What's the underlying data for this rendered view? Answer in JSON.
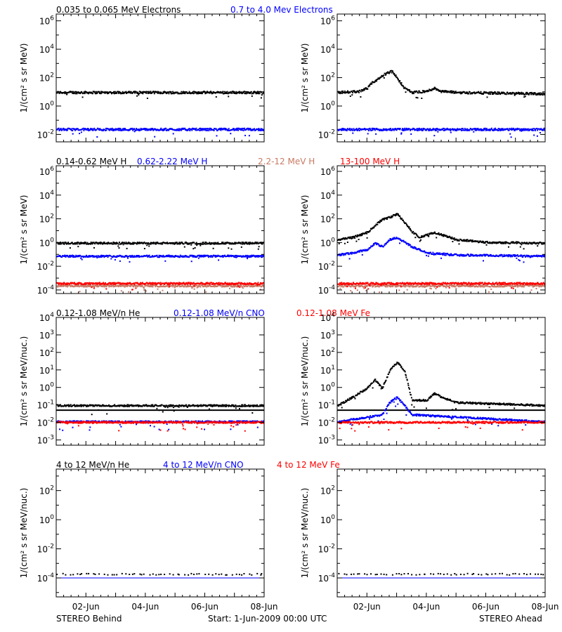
{
  "colors": {
    "black": "#000000",
    "blue": "#0000ff",
    "salmon": "#c87a64",
    "red": "#ff0000"
  },
  "rows": [
    {
      "titles": [
        {
          "text": "0.035 to 0.065 MeV Electrons",
          "color": "black"
        },
        {
          "text": "0.7 to 4.0 Mev Electrons",
          "color": "blue"
        }
      ],
      "ylabel": "1/(cm² s sr MeV)"
    },
    {
      "titles": [
        {
          "text": "0.14-0.62 MeV H",
          "color": "black"
        },
        {
          "text": "0.62-2.22 MeV H",
          "color": "blue"
        },
        {
          "text": "2.2-12 MeV H",
          "color": "salmon"
        },
        {
          "text": "13-100 MeV H",
          "color": "red"
        }
      ],
      "ylabel": "1/(cm² s sr MeV)"
    },
    {
      "titles": [
        {
          "text": "0.12-1.08 MeV/n He",
          "color": "black"
        },
        {
          "text": "0.12-1.08 MeV/n CNO",
          "color": "blue"
        },
        {
          "text": "0.12-1.08 MeV Fe",
          "color": "red"
        }
      ],
      "ylabel": "1/(cm² s sr MeV/nuc.)"
    },
    {
      "titles": [
        {
          "text": "4 to 12 MeV/n He",
          "color": "black"
        },
        {
          "text": "4 to 12 MeV/n CNO",
          "color": "blue"
        },
        {
          "text": "4 to 12 MeV Fe",
          "color": "red"
        }
      ],
      "ylabel": "1/(cm² s sr MeV/nuc.)"
    }
  ],
  "footer": {
    "left": "STEREO Behind",
    "center": "Start:  1-Jun-2009 00:00 UTC",
    "right": "STEREO Ahead"
  },
  "chart_data": [
    {
      "type": "scatter",
      "panel": "Behind electrons",
      "yscale": "log",
      "xlim": [
        "2009-06-01",
        "2009-06-08"
      ],
      "ylim": [
        0.003,
        3000000
      ],
      "yticks": [
        0.01,
        1,
        100,
        10000,
        1000000
      ],
      "series": [
        {
          "name": "0.035 to 0.065 MeV Electrons",
          "color": "black",
          "style": "points",
          "x": [
            "2009-06-01",
            "2009-06-08"
          ],
          "y": [
            10,
            10
          ]
        },
        {
          "name": "0.7 to 4.0 Mev Electrons",
          "color": "blue",
          "style": "points",
          "x": [
            "2009-06-01",
            "2009-06-08"
          ],
          "y": [
            0.025,
            0.025
          ]
        }
      ]
    },
    {
      "type": "scatter",
      "panel": "Ahead electrons",
      "yscale": "log",
      "xlim": [
        "2009-06-01",
        "2009-06-08"
      ],
      "ylim": [
        0.003,
        3000000
      ],
      "yticks": [
        0.01,
        1,
        100,
        10000,
        1000000
      ],
      "series": [
        {
          "name": "0.035 to 0.065 MeV Electrons",
          "color": "black",
          "style": "points",
          "x": [
            "2009-06-01",
            "2009-06-01 18:00",
            "2009-06-02 00:00",
            "2009-06-02 04:00",
            "2009-06-02 08:00",
            "2009-06-02 12:00",
            "2009-06-02 16:00",
            "2009-06-02 20:00",
            "2009-06-03 00:00",
            "2009-06-03 06:00",
            "2009-06-03 12:00",
            "2009-06-04 00:00",
            "2009-06-04 06:00",
            "2009-06-04 12:00",
            "2009-06-05 00:00",
            "2009-06-08"
          ],
          "y": [
            10,
            12,
            20,
            50,
            80,
            150,
            250,
            300,
            100,
            20,
            10,
            12,
            20,
            12,
            10,
            8
          ]
        },
        {
          "name": "0.7 to 4.0 Mev Electrons",
          "color": "blue",
          "style": "points",
          "x": [
            "2009-06-01",
            "2009-06-08"
          ],
          "y": [
            0.025,
            0.025
          ]
        }
      ]
    },
    {
      "type": "scatter",
      "panel": "Behind H",
      "yscale": "log",
      "xlim": [
        "2009-06-01",
        "2009-06-08"
      ],
      "ylim": [
        5e-05,
        3000000
      ],
      "yticks": [
        0.0001,
        0.01,
        1,
        100,
        10000,
        1000000
      ],
      "series": [
        {
          "name": "0.14-0.62 MeV H",
          "color": "black",
          "style": "points",
          "x": [
            "2009-06-01",
            "2009-06-08"
          ],
          "y": [
            1,
            1
          ]
        },
        {
          "name": "0.62-2.22 MeV H",
          "color": "blue",
          "style": "points",
          "x": [
            "2009-06-01",
            "2009-06-08"
          ],
          "y": [
            0.08,
            0.08
          ]
        },
        {
          "name": "2.2-12 MeV H",
          "color": "salmon",
          "style": "points",
          "x": [
            "2009-06-01",
            "2009-06-08"
          ],
          "y": [
            0.00025,
            0.00025
          ]
        },
        {
          "name": "13-100 MeV H",
          "color": "red",
          "style": "points",
          "x": [
            "2009-06-01",
            "2009-06-08"
          ],
          "y": [
            0.0004,
            0.0004
          ]
        }
      ]
    },
    {
      "type": "scatter",
      "panel": "Ahead H",
      "yscale": "log",
      "xlim": [
        "2009-06-01",
        "2009-06-08"
      ],
      "ylim": [
        5e-05,
        3000000
      ],
      "yticks": [
        0.0001,
        0.01,
        1,
        100,
        10000,
        1000000
      ],
      "series": [
        {
          "name": "0.14-0.62 MeV H",
          "color": "black",
          "style": "points",
          "x": [
            "2009-06-01",
            "2009-06-01 12:00",
            "2009-06-02 00:00",
            "2009-06-02 06:00",
            "2009-06-02 12:00",
            "2009-06-02 18:00",
            "2009-06-03 00:00",
            "2009-06-03 12:00",
            "2009-06-03 18:00",
            "2009-06-04 00:00",
            "2009-06-04 06:00",
            "2009-06-04 12:00",
            "2009-06-05 00:00",
            "2009-06-06 00:00",
            "2009-06-08"
          ],
          "y": [
            2,
            3,
            8,
            30,
            100,
            150,
            300,
            10,
            3,
            5,
            8,
            5,
            2,
            1.2,
            1
          ]
        },
        {
          "name": "0.62-2.22 MeV H",
          "color": "blue",
          "style": "points",
          "x": [
            "2009-06-01",
            "2009-06-01 12:00",
            "2009-06-02 00:00",
            "2009-06-02 06:00",
            "2009-06-02 12:00",
            "2009-06-02 18:00",
            "2009-06-03 00:00",
            "2009-06-03 12:00",
            "2009-06-04 00:00",
            "2009-06-05 00:00",
            "2009-06-08"
          ],
          "y": [
            0.1,
            0.15,
            0.3,
            1,
            0.5,
            2,
            3,
            0.5,
            0.15,
            0.1,
            0.08
          ]
        },
        {
          "name": "2.2-12 MeV H",
          "color": "salmon",
          "style": "points",
          "x": [
            "2009-06-01",
            "2009-06-08"
          ],
          "y": [
            0.00025,
            0.00025
          ]
        },
        {
          "name": "13-100 MeV H",
          "color": "red",
          "style": "points",
          "x": [
            "2009-06-01",
            "2009-06-08"
          ],
          "y": [
            0.0004,
            0.0004
          ]
        }
      ]
    },
    {
      "type": "scatter",
      "panel": "Behind low-energy ions",
      "yscale": "log",
      "xlim": [
        "2009-06-01",
        "2009-06-08"
      ],
      "ylim": [
        0.0005,
        10000
      ],
      "yticks": [
        0.001,
        0.01,
        0.1,
        1,
        10,
        100,
        1000,
        10000
      ],
      "series": [
        {
          "name": "0.12-1.08 MeV/n He",
          "color": "black",
          "style": "points",
          "x": [
            "2009-06-01",
            "2009-06-08"
          ],
          "y": [
            0.1,
            0.1
          ]
        },
        {
          "name": "0.12-1.08 MeV/n He (baseline)",
          "color": "black",
          "style": "line",
          "x": [
            "2009-06-01",
            "2009-06-08"
          ],
          "y": [
            0.05,
            0.05
          ]
        },
        {
          "name": "0.12-1.08 MeV/n CNO",
          "color": "blue",
          "style": "points",
          "x": [
            "2009-06-01",
            "2009-06-08"
          ],
          "y": [
            0.012,
            0.012
          ]
        },
        {
          "name": "0.12-1.08 MeV Fe",
          "color": "red",
          "style": "points",
          "x": [
            "2009-06-01",
            "2009-06-08"
          ],
          "y": [
            0.011,
            0.011
          ]
        }
      ]
    },
    {
      "type": "scatter",
      "panel": "Ahead low-energy ions",
      "yscale": "log",
      "xlim": [
        "2009-06-01",
        "2009-06-08"
      ],
      "ylim": [
        0.0005,
        10000
      ],
      "yticks": [
        0.001,
        0.01,
        0.1,
        1,
        10,
        100,
        1000,
        10000
      ],
      "series": [
        {
          "name": "0.12-1.08 MeV/n He",
          "color": "black",
          "style": "points",
          "x": [
            "2009-06-01",
            "2009-06-01 12:00",
            "2009-06-02 00:00",
            "2009-06-02 06:00",
            "2009-06-02 12:00",
            "2009-06-02 18:00",
            "2009-06-03 00:00",
            "2009-06-03 06:00",
            "2009-06-03 12:00",
            "2009-06-04 00:00",
            "2009-06-04 06:00",
            "2009-06-04 12:00",
            "2009-06-05 00:00",
            "2009-06-08"
          ],
          "y": [
            0.1,
            0.3,
            1,
            3,
            1,
            10,
            30,
            10,
            0.2,
            0.2,
            0.5,
            0.3,
            0.15,
            0.1
          ]
        },
        {
          "name": "0.12-1.08 MeV/n He (baseline)",
          "color": "black",
          "style": "line",
          "x": [
            "2009-06-01",
            "2009-06-08"
          ],
          "y": [
            0.05,
            0.05
          ]
        },
        {
          "name": "0.12-1.08 MeV/n CNO",
          "color": "blue",
          "style": "points",
          "x": [
            "2009-06-01",
            "2009-06-02 12:00",
            "2009-06-02 18:00",
            "2009-06-03 00:00",
            "2009-06-03 06:00",
            "2009-06-03 12:00",
            "2009-06-08"
          ],
          "y": [
            0.012,
            0.03,
            0.15,
            0.3,
            0.1,
            0.03,
            0.012
          ]
        },
        {
          "name": "0.12-1.08 MeV Fe",
          "color": "red",
          "style": "points",
          "x": [
            "2009-06-01",
            "2009-06-08"
          ],
          "y": [
            0.011,
            0.011
          ]
        }
      ]
    },
    {
      "type": "scatter",
      "panel": "Behind high-energy ions",
      "yscale": "log",
      "xlim": [
        "2009-06-01",
        "2009-06-08"
      ],
      "ylim": [
        5e-06,
        3000
      ],
      "yticks": [
        0.0001,
        0.01,
        1,
        100
      ],
      "series": [
        {
          "name": "4 to 12 MeV/n He",
          "color": "black",
          "style": "points",
          "x": [
            "2009-06-01",
            "2009-06-08"
          ],
          "y": [
            0.0002,
            0.0002
          ]
        },
        {
          "name": "4 to 12 MeV/n CNO",
          "color": "blue",
          "style": "line",
          "x": [
            "2009-06-01",
            "2009-06-08"
          ],
          "y": [
            0.0001,
            0.0001
          ]
        },
        {
          "name": "4 to 12 MeV Fe",
          "color": "red",
          "style": "points",
          "x": [],
          "y": []
        }
      ]
    },
    {
      "type": "scatter",
      "panel": "Ahead high-energy ions",
      "yscale": "log",
      "xlim": [
        "2009-06-01",
        "2009-06-08"
      ],
      "ylim": [
        5e-06,
        3000
      ],
      "yticks": [
        0.0001,
        0.01,
        1,
        100
      ],
      "series": [
        {
          "name": "4 to 12 MeV/n He",
          "color": "black",
          "style": "points",
          "x": [
            "2009-06-01",
            "2009-06-08"
          ],
          "y": [
            0.0002,
            0.0002
          ]
        },
        {
          "name": "4 to 12 MeV/n CNO",
          "color": "blue",
          "style": "line",
          "x": [
            "2009-06-01",
            "2009-06-08"
          ],
          "y": [
            0.0001,
            0.0001
          ]
        },
        {
          "name": "4 to 12 MeV Fe",
          "color": "red",
          "style": "points",
          "x": [],
          "y": []
        }
      ]
    }
  ],
  "x_ticks": [
    "02-Jun",
    "04-Jun",
    "06-Jun",
    "08-Jun"
  ],
  "x_tick_dates": [
    "2009-06-02",
    "2009-06-04",
    "2009-06-06",
    "2009-06-08"
  ]
}
